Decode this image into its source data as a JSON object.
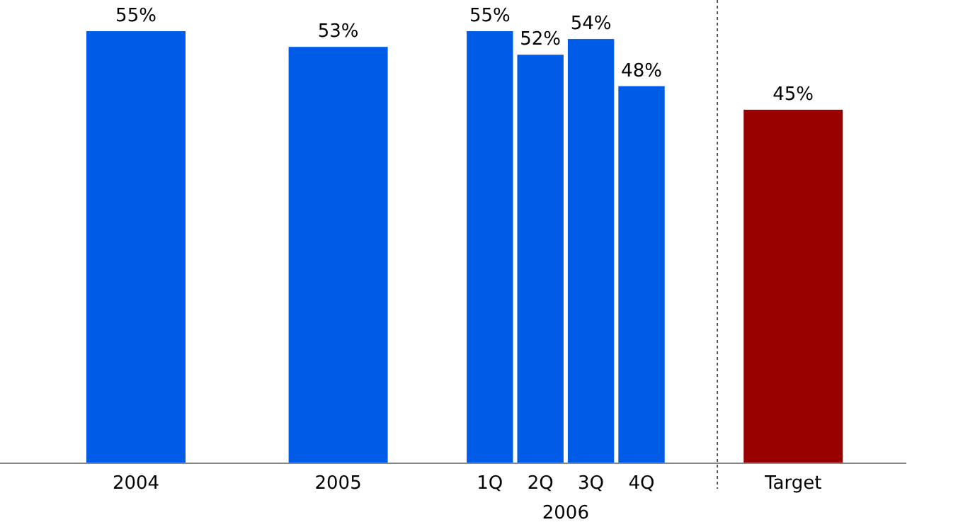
{
  "chart_data": {
    "type": "bar",
    "categories": [
      "2004",
      null,
      null,
      null,
      "2005",
      null,
      null,
      "1Q",
      "2Q",
      "3Q",
      "4Q",
      null,
      null,
      "Target"
    ],
    "values": [
      55,
      null,
      null,
      null,
      53,
      null,
      null,
      55,
      52,
      54,
      48,
      null,
      null,
      45
    ],
    "colors": [
      "#005ce6",
      null,
      null,
      null,
      "#005ce6",
      null,
      null,
      "#005ce6",
      "#005ce6",
      "#005ce6",
      "#005ce6",
      null,
      null,
      "#990000"
    ],
    "value_labels": [
      "55%",
      null,
      null,
      null,
      "53%",
      null,
      null,
      "55%",
      "52%",
      "54%",
      "48%",
      null,
      null,
      "45%"
    ],
    "annotations": [
      "2006"
    ]
  }
}
